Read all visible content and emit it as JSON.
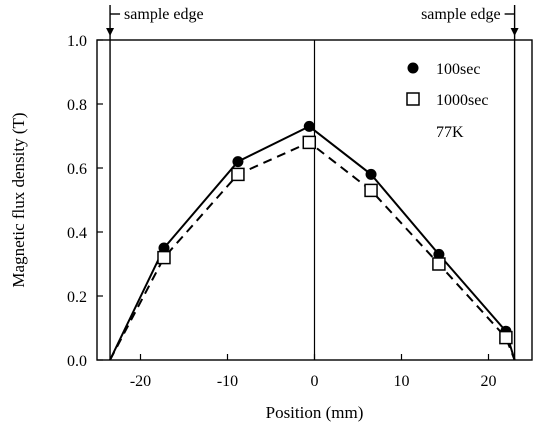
{
  "chart_data": {
    "type": "line",
    "xlabel": "Position (mm)",
    "ylabel": "Magnetic flux density (T)",
    "xlim": [
      -25,
      25
    ],
    "ylim": [
      0.0,
      1.0
    ],
    "x_ticks": [
      -20,
      -10,
      0,
      10,
      20
    ],
    "x_tick_labels": [
      "-20",
      "-10",
      "0",
      "10",
      "20"
    ],
    "y_ticks": [
      0.0,
      0.2,
      0.4,
      0.6,
      0.8,
      1.0
    ],
    "y_tick_labels": [
      "0.0",
      "0.2",
      "0.4",
      "0.6",
      "0.8",
      "1.0"
    ],
    "grid": false,
    "legend_position": "top-right",
    "legend_note": "77K",
    "sample_edges": [
      -23.5,
      23.0
    ],
    "sample_edge_label": "sample edge",
    "series": [
      {
        "name": "100sec",
        "marker": "filled-circle",
        "line_style": "solid",
        "x": [
          -23.5,
          -17.3,
          -8.8,
          -0.6,
          6.5,
          14.3,
          22.0,
          23.0
        ],
        "y": [
          0.0,
          0.35,
          0.62,
          0.73,
          0.58,
          0.33,
          0.09,
          0.0
        ],
        "marker_x": [
          -17.3,
          -8.8,
          -0.6,
          6.5,
          14.3,
          22.0
        ],
        "marker_y": [
          0.35,
          0.62,
          0.73,
          0.58,
          0.33,
          0.09
        ]
      },
      {
        "name": "1000sec",
        "marker": "open-square",
        "line_style": "dashed",
        "x": [
          -23.5,
          -17.3,
          -8.8,
          -0.6,
          6.5,
          14.3,
          22.0,
          23.0
        ],
        "y": [
          0.0,
          0.32,
          0.58,
          0.68,
          0.53,
          0.3,
          0.07,
          0.0
        ],
        "marker_x": [
          -17.3,
          -8.8,
          -0.6,
          6.5,
          14.3,
          22.0
        ],
        "marker_y": [
          0.32,
          0.58,
          0.68,
          0.53,
          0.3,
          0.07
        ]
      }
    ]
  }
}
